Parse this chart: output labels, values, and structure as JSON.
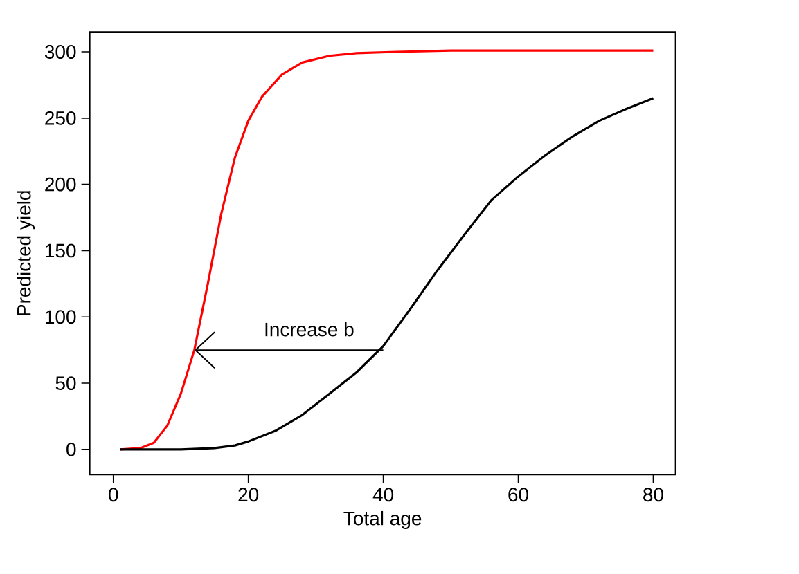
{
  "chart_data": {
    "type": "line",
    "xlabel": "Total age",
    "ylabel": "Predicted yield",
    "xlim": [
      -3.5,
      83.3
    ],
    "ylim": [
      -19,
      315
    ],
    "xticks": [
      0,
      20,
      40,
      60,
      80
    ],
    "yticks": [
      0,
      50,
      100,
      150,
      200,
      250,
      300
    ],
    "annotations": [
      {
        "text": "Increase b",
        "x": 40,
        "y": 75
      }
    ],
    "series": [
      {
        "color": "#ff0000",
        "x": [
          1,
          4,
          6,
          8,
          10,
          12,
          14,
          16,
          18,
          20,
          22,
          25,
          28,
          32,
          36,
          42,
          50,
          60,
          80
        ],
        "values": [
          0,
          1,
          5,
          18,
          42,
          75,
          125,
          178,
          220,
          248,
          266,
          283,
          292,
          297,
          299,
          300,
          301,
          301,
          301
        ]
      },
      {
        "color": "#000000",
        "x": [
          1,
          10,
          15,
          18,
          20,
          24,
          28,
          32,
          36,
          40,
          44,
          48,
          52,
          56,
          60,
          64,
          68,
          72,
          76,
          80
        ],
        "values": [
          0,
          0,
          1,
          3,
          6,
          14,
          26,
          42,
          58,
          78,
          106,
          135,
          162,
          188,
          206,
          222,
          236,
          248,
          257,
          265
        ]
      }
    ]
  }
}
